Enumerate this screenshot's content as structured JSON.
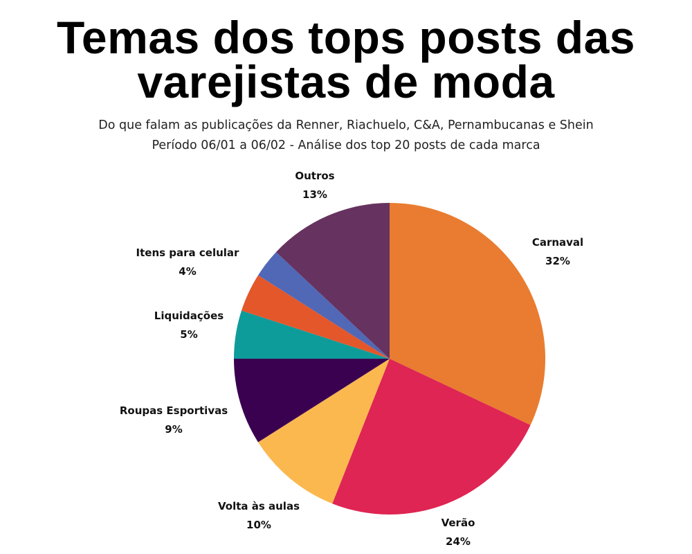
{
  "chart_data": {
    "type": "pie",
    "title_lines": [
      "Temas dos tops posts das",
      "varejistas de moda"
    ],
    "subtitle_lines": [
      "Do que falam as publicações da Renner, Riachuelo, C&A, Pernambucanas e Shein",
      "Período 06/01 a 06/02 - Análise dos top 20 posts de cada marca"
    ],
    "slices": [
      {
        "label": "Carnaval",
        "value": 32,
        "value_label": "32%",
        "color": "#E97C30"
      },
      {
        "label": "Verão",
        "value": 24,
        "value_label": "24%",
        "color": "#DF2553"
      },
      {
        "label": "Volta às aulas",
        "value": 10,
        "value_label": "10%",
        "color": "#FBB84F"
      },
      {
        "label": "Roupas Esportivas",
        "value": 9,
        "value_label": "9%",
        "color": "#3B0151"
      },
      {
        "label": "Liquidações",
        "value": 5,
        "value_label": "5%",
        "color": "#0E9C9A"
      },
      {
        "label": "Itens para celular",
        "value": 4,
        "value_label": "4%",
        "color": "#E3572B"
      },
      {
        "label": "",
        "value": 3,
        "value_label": "",
        "color": "#5068B6"
      },
      {
        "label": "Outros",
        "value": 13,
        "value_label": "13%",
        "color": "#66325F"
      }
    ],
    "start": "top",
    "direction": "clockwise"
  }
}
